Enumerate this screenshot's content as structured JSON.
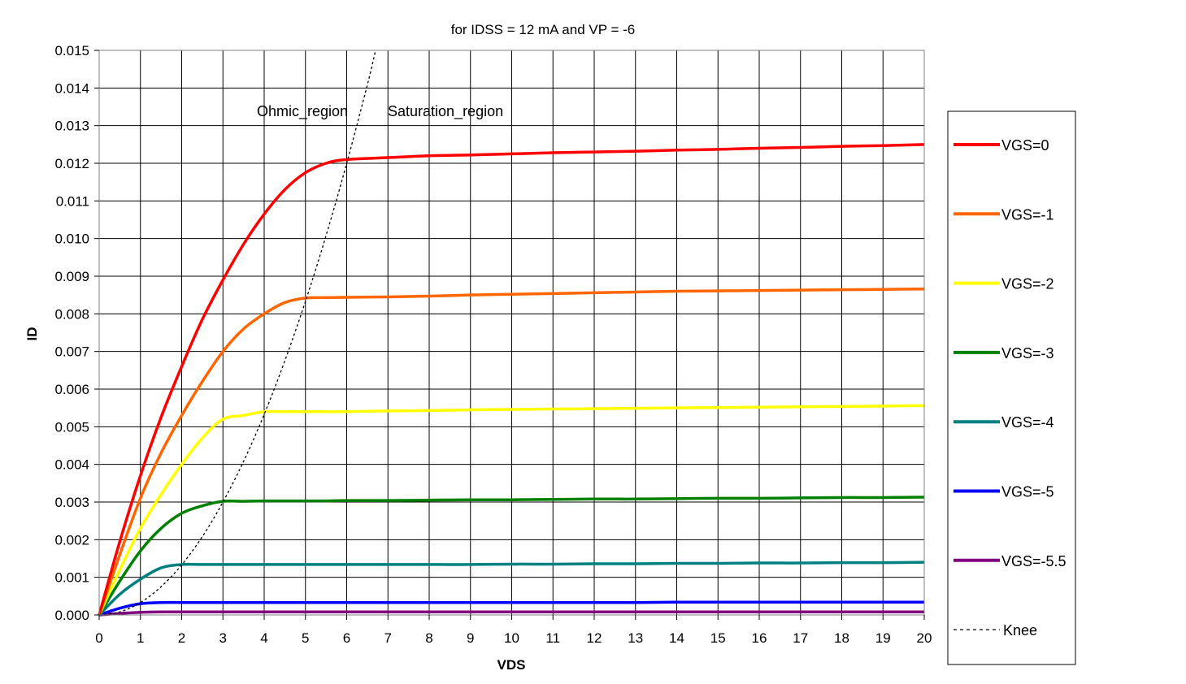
{
  "chart_data": {
    "type": "line",
    "subtitle": "for IDSS = 12 mA and VP = -6",
    "xlabel": "VDS",
    "ylabel": "ID",
    "xlim": [
      0,
      20
    ],
    "ylim": [
      0,
      0.015
    ],
    "x_ticks": [
      "0",
      "1",
      "2",
      "3",
      "4",
      "5",
      "6",
      "7",
      "8",
      "9",
      "10",
      "11",
      "12",
      "13",
      "14",
      "15",
      "16",
      "17",
      "18",
      "19",
      "20"
    ],
    "y_ticks": [
      "0.000",
      "0.001",
      "0.002",
      "0.003",
      "0.004",
      "0.005",
      "0.006",
      "0.007",
      "0.008",
      "0.009",
      "0.010",
      "0.011",
      "0.012",
      "0.013",
      "0.014",
      "0.015"
    ],
    "grid": true,
    "legend_position": "right",
    "annotations": [
      "Ohmic_region",
      "Saturation_region"
    ],
    "x": [
      0,
      0.5,
      1,
      1.5,
      2,
      2.5,
      3,
      3.5,
      4,
      4.5,
      5,
      5.5,
      6,
      7,
      8,
      9,
      10,
      11,
      12,
      13,
      14,
      15,
      16,
      17,
      18,
      19,
      20
    ],
    "series": [
      {
        "name": "VGS=0",
        "color": "#ff0000",
        "style": "solid",
        "values": [
          0,
          0.00195,
          0.0037,
          0.00525,
          0.0066,
          0.00785,
          0.0089,
          0.00985,
          0.01065,
          0.0113,
          0.01175,
          0.012,
          0.0121,
          0.01215,
          0.0122,
          0.01222,
          0.01225,
          0.01228,
          0.0123,
          0.01232,
          0.01235,
          0.01237,
          0.0124,
          0.01242,
          0.01245,
          0.01247,
          0.0125
        ]
      },
      {
        "name": "VGS=-1",
        "color": "#ff6600",
        "style": "solid",
        "values": [
          0,
          0.0016,
          0.0031,
          0.0043,
          0.0053,
          0.0062,
          0.007,
          0.0076,
          0.008,
          0.0083,
          0.00842,
          0.00843,
          0.00844,
          0.00845,
          0.00847,
          0.0085,
          0.00852,
          0.00854,
          0.00856,
          0.00858,
          0.0086,
          0.00861,
          0.00862,
          0.00863,
          0.00864,
          0.00865,
          0.00866
        ]
      },
      {
        "name": "VGS=-2",
        "color": "#ffff00",
        "style": "solid",
        "values": [
          0,
          0.0012,
          0.0023,
          0.0032,
          0.004,
          0.0047,
          0.0052,
          0.0053,
          0.0054,
          0.0054,
          0.0054,
          0.0054,
          0.0054,
          0.00542,
          0.00543,
          0.00545,
          0.00546,
          0.00547,
          0.00548,
          0.00549,
          0.0055,
          0.00551,
          0.00552,
          0.00553,
          0.00554,
          0.00555,
          0.00556
        ]
      },
      {
        "name": "VGS=-3",
        "color": "#008000",
        "style": "solid",
        "values": [
          0,
          0.0009,
          0.0017,
          0.0023,
          0.0027,
          0.0029,
          0.00302,
          0.00302,
          0.00303,
          0.00303,
          0.00303,
          0.00303,
          0.00304,
          0.00304,
          0.00305,
          0.00306,
          0.00306,
          0.00307,
          0.00308,
          0.00308,
          0.00309,
          0.0031,
          0.0031,
          0.00311,
          0.00312,
          0.00312,
          0.00313
        ]
      },
      {
        "name": "VGS=-4",
        "color": "#008080",
        "style": "solid",
        "values": [
          0,
          0.00055,
          0.00095,
          0.00125,
          0.00134,
          0.00134,
          0.00134,
          0.00134,
          0.00134,
          0.00134,
          0.00134,
          0.00134,
          0.00134,
          0.00134,
          0.00134,
          0.00134,
          0.00135,
          0.00135,
          0.00136,
          0.00136,
          0.00137,
          0.00137,
          0.00138,
          0.00138,
          0.00139,
          0.00139,
          0.0014
        ]
      },
      {
        "name": "VGS=-5",
        "color": "#0000ff",
        "style": "solid",
        "values": [
          0,
          0.00018,
          0.0003,
          0.00033,
          0.00033,
          0.00033,
          0.00033,
          0.00033,
          0.00033,
          0.00033,
          0.00033,
          0.00033,
          0.00033,
          0.00033,
          0.00033,
          0.00033,
          0.00033,
          0.00033,
          0.00033,
          0.00033,
          0.00034,
          0.00034,
          0.00034,
          0.00034,
          0.00034,
          0.00034,
          0.00034
        ]
      },
      {
        "name": "VGS=-5.5",
        "color": "#800080",
        "style": "solid",
        "values": [
          0,
          4e-05,
          7e-05,
          8e-05,
          8e-05,
          8e-05,
          8e-05,
          8e-05,
          8e-05,
          8e-05,
          8e-05,
          8e-05,
          8e-05,
          8e-05,
          8e-05,
          8e-05,
          8e-05,
          8e-05,
          8e-05,
          8e-05,
          8e-05,
          8e-05,
          8e-05,
          8e-05,
          8e-05,
          8e-05,
          8e-05
        ]
      }
    ],
    "knee": {
      "name": "Knee",
      "color": "#000000",
      "style": "dashed",
      "x": [
        0,
        0.5,
        1,
        1.5,
        2,
        2.5,
        3,
        3.5,
        4,
        4.5,
        5,
        5.5,
        6,
        6.5,
        6.7
      ],
      "values": [
        0,
        8e-05,
        0.00033,
        0.00075,
        0.00133,
        0.00208,
        0.003,
        0.00408,
        0.00533,
        0.00675,
        0.00833,
        0.01008,
        0.012,
        0.01408,
        0.015
      ]
    }
  }
}
